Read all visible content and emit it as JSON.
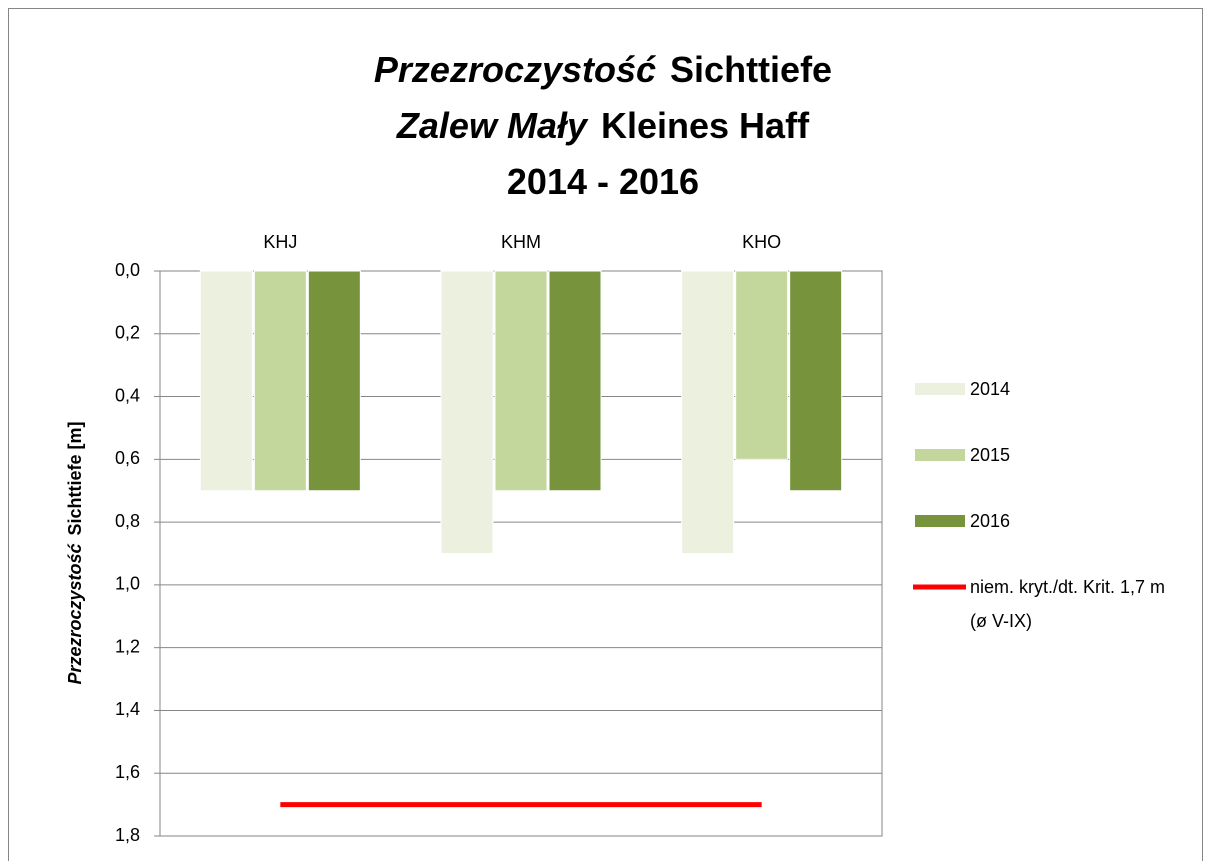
{
  "chart_data": {
    "type": "bar",
    "title": [
      [
        {
          "text": "Przezroczystość",
          "italic": true
        },
        {
          "text": "Sichttiefe",
          "italic": false
        }
      ],
      [
        {
          "text": "Zalew Mały",
          "italic": true
        },
        {
          "text": "Kleines Haff",
          "italic": false
        }
      ],
      [
        {
          "text": "2014 - 2016",
          "italic": false
        }
      ]
    ],
    "y_label": [
      {
        "text": "Przezroczystość",
        "italic": true
      },
      {
        "text": "Sichttiefe [m]",
        "italic": false
      }
    ],
    "categories": [
      "KHJ",
      "KHM",
      "KHO"
    ],
    "series": [
      {
        "name": "2014",
        "color": "#ebf1de",
        "values": [
          0.7,
          0.9,
          0.9
        ]
      },
      {
        "name": "2015",
        "color": "#c3d69b",
        "values": [
          0.7,
          0.7,
          0.6
        ]
      },
      {
        "name": "2016",
        "color": "#77933c",
        "values": [
          0.7,
          0.7,
          0.7
        ]
      },
      {
        "name": "niem. kryt./dt. Krit. 1,7 m (ø V-IX)",
        "color": "#ff0000",
        "type": "line",
        "values": [
          1.7,
          1.7,
          1.7
        ]
      }
    ],
    "ylim": [
      0,
      1.8
    ],
    "y_inverted": true,
    "yticks": [
      {
        "value": 0,
        "label": "0,0"
      },
      {
        "value": 0.2,
        "label": "0,2"
      },
      {
        "value": 0.4,
        "label": "0,4"
      },
      {
        "value": 0.6,
        "label": "0,6"
      },
      {
        "value": 0.8,
        "label": "0,8"
      },
      {
        "value": 1.0,
        "label": "1,0"
      },
      {
        "value": 1.2,
        "label": "1,2"
      },
      {
        "value": 1.4,
        "label": "1,4"
      },
      {
        "value": 1.6,
        "label": "1,6"
      },
      {
        "value": 1.8,
        "label": "1,8"
      }
    ],
    "grid": true,
    "legend": "right"
  }
}
